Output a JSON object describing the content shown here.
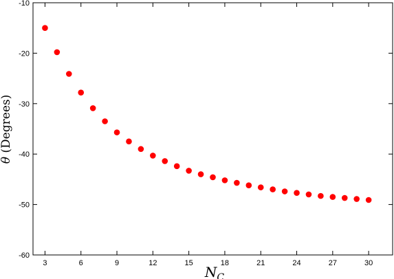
{
  "chart_data": {
    "type": "scatter",
    "title": "",
    "xlabel": "N_C",
    "xlabel_main": "N",
    "xlabel_sub": "C",
    "ylabel_symbol": "θ",
    "ylabel_text": "(Degrees)",
    "xlim": [
      2,
      32
    ],
    "ylim": [
      -60,
      -10
    ],
    "xticks": [
      3,
      6,
      9,
      12,
      15,
      18,
      21,
      24,
      27,
      30
    ],
    "yticks": [
      -60,
      -50,
      -40,
      -30,
      -20,
      -10
    ],
    "grid": false,
    "legend": "none",
    "series": [
      {
        "color": "#ff0000",
        "x": [
          3,
          4,
          5,
          6,
          7,
          8,
          9,
          10,
          11,
          12,
          13,
          14,
          15,
          16,
          17,
          18,
          19,
          20,
          21,
          22,
          23,
          24,
          25,
          26,
          27,
          28,
          29,
          30
        ],
        "y": [
          -15.0,
          -19.8,
          -24.1,
          -27.8,
          -30.9,
          -33.5,
          -35.7,
          -37.5,
          -39.0,
          -40.3,
          -41.4,
          -42.4,
          -43.3,
          -44.0,
          -44.6,
          -45.2,
          -45.7,
          -46.2,
          -46.6,
          -47.0,
          -47.4,
          -47.7,
          -48.0,
          -48.3,
          -48.5,
          -48.7,
          -48.9,
          -49.1
        ]
      }
    ]
  }
}
